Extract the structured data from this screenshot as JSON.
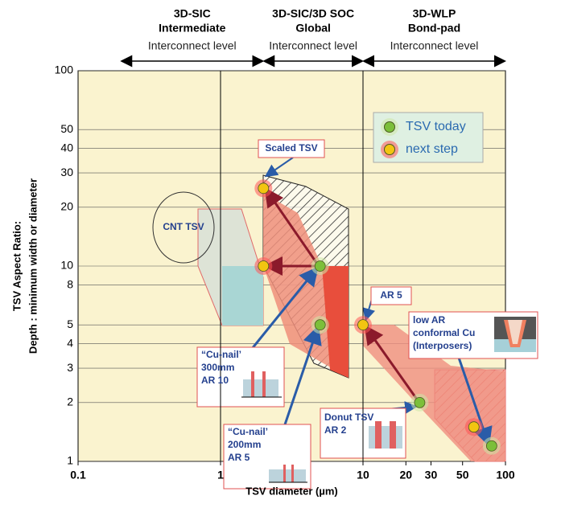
{
  "chart_data": {
    "type": "scatter",
    "xlabel": "TSV diameter (µm)",
    "ylabel": [
      "TSV Aspect Ratio:",
      "Depth : minimum width or diameter"
    ],
    "log_x": true,
    "log_y": true,
    "xlim": [
      0.1,
      100
    ],
    "ylim": [
      1,
      100
    ],
    "xticks": [
      0.1,
      1,
      10,
      20,
      30,
      50,
      100
    ],
    "yticks": [
      1,
      2,
      3,
      4,
      5,
      8,
      10,
      20,
      30,
      40,
      50,
      100
    ],
    "vlines": [
      1,
      10
    ],
    "headers": [
      {
        "title": [
          "3D-SIC",
          "Intermediate"
        ],
        "subtitle": "Interconnect level",
        "from": 0.2,
        "to": 2
      },
      {
        "title": [
          "3D-SIC/3D SOC",
          "Global"
        ],
        "subtitle": "Interconnect level",
        "from": 2,
        "to": 10
      },
      {
        "title": [
          "3D-WLP",
          "Bond-pad"
        ],
        "subtitle": "Interconnect level",
        "from": 10,
        "to": 100
      }
    ],
    "series": [
      {
        "name": "TSV today",
        "color": "#7cbf3a",
        "x": [
          5,
          5,
          25,
          80
        ],
        "values": [
          10,
          5,
          2,
          1.2
        ]
      },
      {
        "name": "next step",
        "color": "#f2c511",
        "x": [
          2,
          2,
          10,
          60
        ],
        "values": [
          25,
          10,
          5,
          1.5
        ]
      }
    ],
    "annotations": [
      {
        "lines": [
          "Scaled TSV"
        ]
      },
      {
        "lines": [
          "CNT TSV"
        ]
      },
      {
        "lines": [
          "AR 5"
        ]
      },
      {
        "lines": [
          "“Cu-nail’",
          "300mm",
          "AR 10"
        ]
      },
      {
        "lines": [
          "“Cu-nail’",
          "200mm",
          "AR 5"
        ]
      },
      {
        "lines": [
          "Donut TSV",
          "AR 2"
        ]
      },
      {
        "lines": [
          "low AR",
          "conformal Cu",
          "(Interposers)"
        ]
      }
    ]
  }
}
